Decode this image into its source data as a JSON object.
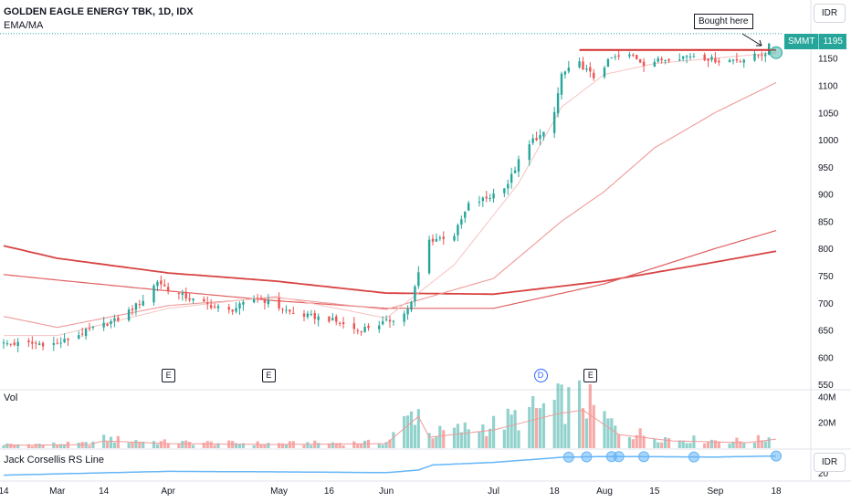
{
  "header": {
    "title": "GOLDEN EAGLE ENERGY TBK, 1D, IDX",
    "indicator": "EMA/MA"
  },
  "currency_button": "IDR",
  "rs_currency_button": "IDR",
  "last_price_tag": {
    "symbol": "SMMT",
    "value": "1195"
  },
  "annotation": {
    "text": "Bought here"
  },
  "volume_label": "Vol",
  "rs_label": "Jack Corsellis RS Line",
  "events": [
    {
      "type": "E",
      "date": "2022-04-01"
    },
    {
      "type": "E",
      "date": "2022-04-29"
    },
    {
      "type": "D",
      "date": "2022-07-14"
    },
    {
      "type": "E",
      "date": "2022-07-28"
    }
  ],
  "colors": {
    "up": "#26a69a",
    "down": "#ef5350",
    "ema_fast": "#f7c2c2",
    "ema_mid": "#ef9a9a",
    "ma_slow": "#e06060",
    "ma_long": "#d84343",
    "rs_line": "#64b5f6",
    "resistance": "#d32f2f"
  },
  "chart_data": {
    "type": "candlestick",
    "title": "GOLDEN EAGLE ENERGY TBK, 1D, IDX",
    "x_tick_labels": [
      "14",
      "Mar",
      "14",
      "Apr",
      "May",
      "16",
      "Jun",
      "Jul",
      "18",
      "Aug",
      "15",
      "Sep",
      "18"
    ],
    "x_tick_dates": [
      "2022-02-14",
      "2022-03-01",
      "2022-03-14",
      "2022-04-01",
      "2022-05-02",
      "2022-05-16",
      "2022-06-01",
      "2022-07-01",
      "2022-07-18",
      "2022-08-01",
      "2022-08-15",
      "2022-09-01",
      "2022-09-18"
    ],
    "x_range": [
      "2022-02-14",
      "2022-09-18"
    ],
    "price_axis": {
      "ticks": [
        550,
        600,
        650,
        700,
        750,
        800,
        850,
        900,
        950,
        1000,
        1050,
        1100,
        1150
      ],
      "ylim": [
        542,
        1183
      ],
      "unit": "IDR"
    },
    "last_price": 1195,
    "resistance": {
      "value": 1165,
      "from": "2022-07-25",
      "to": "2022-09-18"
    },
    "ohlc_keypoints": [
      [
        "2022-02-14",
        625
      ],
      [
        "2022-03-01",
        625
      ],
      [
        "2022-03-10",
        650
      ],
      [
        "2022-03-18",
        670
      ],
      [
        "2022-03-25",
        705
      ],
      [
        "2022-03-29",
        740
      ],
      [
        "2022-04-01",
        725
      ],
      [
        "2022-04-08",
        705
      ],
      [
        "2022-04-18",
        685
      ],
      [
        "2022-04-26",
        710
      ],
      [
        "2022-05-06",
        680
      ],
      [
        "2022-05-16",
        670
      ],
      [
        "2022-05-24",
        650
      ],
      [
        "2022-06-01",
        665
      ],
      [
        "2022-06-06",
        680
      ],
      [
        "2022-06-08",
        700
      ],
      [
        "2022-06-10",
        755
      ],
      [
        "2022-06-13",
        815
      ],
      [
        "2022-06-20",
        825
      ],
      [
        "2022-06-24",
        880
      ],
      [
        "2022-06-30",
        895
      ],
      [
        "2022-07-05",
        920
      ],
      [
        "2022-07-08",
        960
      ],
      [
        "2022-07-12",
        1000
      ],
      [
        "2022-07-15",
        1010
      ],
      [
        "2022-07-18",
        1050
      ],
      [
        "2022-07-20",
        1120
      ],
      [
        "2022-07-25",
        1140
      ],
      [
        "2022-07-29",
        1115
      ],
      [
        "2022-08-03",
        1150
      ],
      [
        "2022-08-09",
        1155
      ],
      [
        "2022-08-12",
        1140
      ],
      [
        "2022-08-19",
        1150
      ],
      [
        "2022-08-26",
        1155
      ],
      [
        "2022-09-02",
        1145
      ],
      [
        "2022-09-09",
        1148
      ],
      [
        "2022-09-15",
        1160
      ],
      [
        "2022-09-18",
        1195
      ]
    ],
    "moving_averages": [
      {
        "points": [
          [
            "2022-02-14",
            805
          ],
          [
            "2022-03-01",
            782
          ],
          [
            "2022-04-01",
            755
          ],
          [
            "2022-05-01",
            740
          ],
          [
            "2022-06-01",
            718
          ],
          [
            "2022-07-01",
            716
          ],
          [
            "2022-08-01",
            740
          ],
          [
            "2022-09-01",
            775
          ],
          [
            "2022-09-18",
            795
          ]
        ]
      },
      {
        "points": [
          [
            "2022-02-14",
            752
          ],
          [
            "2022-03-01",
            742
          ],
          [
            "2022-04-01",
            722
          ],
          [
            "2022-05-01",
            704
          ],
          [
            "2022-06-01",
            690
          ],
          [
            "2022-07-01",
            690
          ],
          [
            "2022-08-01",
            735
          ],
          [
            "2022-09-01",
            800
          ],
          [
            "2022-09-18",
            833
          ]
        ]
      },
      {
        "points": [
          [
            "2022-02-14",
            675
          ],
          [
            "2022-03-01",
            655
          ],
          [
            "2022-04-01",
            695
          ],
          [
            "2022-05-01",
            710
          ],
          [
            "2022-06-01",
            688
          ],
          [
            "2022-07-01",
            745
          ],
          [
            "2022-07-20",
            850
          ],
          [
            "2022-08-01",
            905
          ],
          [
            "2022-08-15",
            985
          ],
          [
            "2022-09-01",
            1050
          ],
          [
            "2022-09-18",
            1105
          ]
        ]
      },
      {
        "points": [
          [
            "2022-02-14",
            640
          ],
          [
            "2022-03-01",
            640
          ],
          [
            "2022-04-01",
            690
          ],
          [
            "2022-05-01",
            712
          ],
          [
            "2022-06-01",
            672
          ],
          [
            "2022-06-20",
            770
          ],
          [
            "2022-07-08",
            920
          ],
          [
            "2022-07-20",
            1060
          ],
          [
            "2022-08-01",
            1120
          ],
          [
            "2022-08-15",
            1140
          ],
          [
            "2022-09-18",
            1160
          ]
        ]
      }
    ],
    "volume": {
      "axis_ticks": [
        "40M",
        "20M"
      ],
      "ylim": [
        0,
        43000000
      ],
      "keypoints": [
        [
          "2022-02-14",
          3000000
        ],
        [
          "2022-03-10",
          4000000
        ],
        [
          "2022-03-14",
          8000000
        ],
        [
          "2022-04-01",
          5000000
        ],
        [
          "2022-05-01",
          4000000
        ],
        [
          "2022-06-01",
          5000000
        ],
        [
          "2022-06-10",
          35000000
        ],
        [
          "2022-06-13",
          12000000
        ],
        [
          "2022-07-01",
          20000000
        ],
        [
          "2022-07-19",
          38000000
        ],
        [
          "2022-07-26",
          42000000
        ],
        [
          "2022-08-05",
          15000000
        ],
        [
          "2022-08-20",
          8000000
        ],
        [
          "2022-09-10",
          6000000
        ],
        [
          "2022-09-18",
          10000000
        ]
      ]
    },
    "rs_line": {
      "axis_ticks": [
        "20"
      ],
      "points": [
        [
          "2022-02-14",
          0.05
        ],
        [
          "2022-03-01",
          0.1
        ],
        [
          "2022-04-01",
          0.2
        ],
        [
          "2022-05-01",
          0.18
        ],
        [
          "2022-06-01",
          0.15
        ],
        [
          "2022-06-10",
          0.25
        ],
        [
          "2022-06-14",
          0.45
        ],
        [
          "2022-07-01",
          0.55
        ],
        [
          "2022-07-20",
          0.75
        ],
        [
          "2022-08-01",
          0.78
        ],
        [
          "2022-09-01",
          0.76
        ],
        [
          "2022-09-18",
          0.8
        ]
      ],
      "highlight_dates": [
        "2022-07-22",
        "2022-07-27",
        "2022-08-03",
        "2022-08-05",
        "2022-08-12",
        "2022-08-26",
        "2022-09-18"
      ]
    }
  }
}
